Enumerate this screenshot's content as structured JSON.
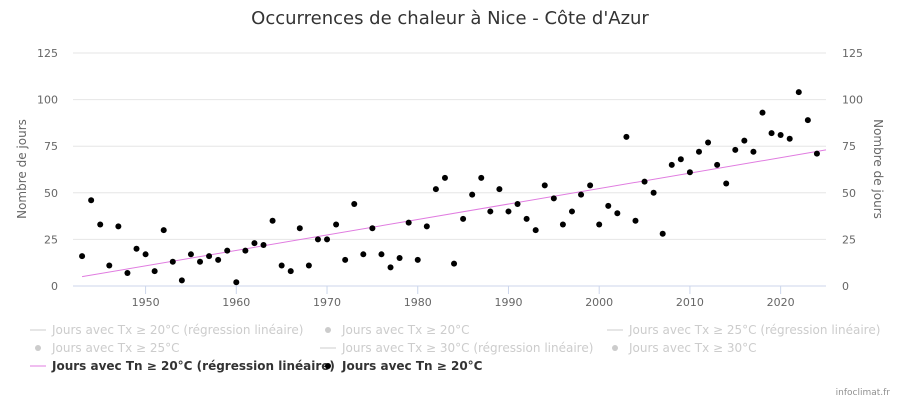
{
  "chart_data": {
    "type": "scatter",
    "title": "Occurrences de chaleur à Nice - Côte d'Azur",
    "ylabel_left": "Nombre de jours",
    "ylabel_right": "Nombre de jours",
    "xlim": [
      1942,
      2025
    ],
    "ylim": [
      0,
      125
    ],
    "x_ticks": [
      1950,
      1960,
      1970,
      1980,
      1990,
      2000,
      2010,
      2020
    ],
    "y_ticks": [
      0,
      25,
      50,
      75,
      100,
      125
    ],
    "grid": true,
    "legend_position": "bottom",
    "legend": [
      {
        "label": "Jours avec Tx ≥ 20°C (régression linéaire)",
        "kind": "line",
        "active": false
      },
      {
        "label": "Jours avec Tx ≥ 20°C",
        "kind": "marker",
        "active": false
      },
      {
        "label": "Jours avec Tx ≥ 25°C (régression linéaire)",
        "kind": "line",
        "active": false
      },
      {
        "label": "Jours avec Tx ≥ 25°C",
        "kind": "marker",
        "active": false
      },
      {
        "label": "Jours avec Tx ≥ 30°C (régression linéaire)",
        "kind": "line",
        "active": false
      },
      {
        "label": "Jours avec Tx ≥ 30°C",
        "kind": "marker",
        "active": false
      },
      {
        "label": "Jours avec Tn ≥ 20°C (régression linéaire)",
        "kind": "line",
        "active": true
      },
      {
        "label": "Jours avec Tn ≥ 20°C",
        "kind": "marker",
        "active": true
      }
    ],
    "series": [
      {
        "name": "Jours avec Tn ≥ 20°C",
        "kind": "scatter",
        "color": "#000000",
        "points": [
          [
            1943,
            16
          ],
          [
            1944,
            46
          ],
          [
            1945,
            33
          ],
          [
            1946,
            11
          ],
          [
            1947,
            32
          ],
          [
            1948,
            7
          ],
          [
            1949,
            20
          ],
          [
            1950,
            17
          ],
          [
            1951,
            8
          ],
          [
            1952,
            30
          ],
          [
            1953,
            13
          ],
          [
            1954,
            3
          ],
          [
            1955,
            17
          ],
          [
            1956,
            13
          ],
          [
            1957,
            16
          ],
          [
            1958,
            14
          ],
          [
            1959,
            19
          ],
          [
            1960,
            2
          ],
          [
            1961,
            19
          ],
          [
            1962,
            23
          ],
          [
            1963,
            22
          ],
          [
            1964,
            35
          ],
          [
            1965,
            11
          ],
          [
            1966,
            8
          ],
          [
            1967,
            31
          ],
          [
            1968,
            11
          ],
          [
            1969,
            25
          ],
          [
            1970,
            25
          ],
          [
            1971,
            33
          ],
          [
            1972,
            14
          ],
          [
            1973,
            44
          ],
          [
            1974,
            17
          ],
          [
            1975,
            31
          ],
          [
            1976,
            17
          ],
          [
            1977,
            10
          ],
          [
            1978,
            15
          ],
          [
            1979,
            34
          ],
          [
            1980,
            14
          ],
          [
            1981,
            32
          ],
          [
            1982,
            52
          ],
          [
            1983,
            58
          ],
          [
            1984,
            12
          ],
          [
            1985,
            36
          ],
          [
            1986,
            49
          ],
          [
            1987,
            58
          ],
          [
            1988,
            40
          ],
          [
            1989,
            52
          ],
          [
            1990,
            40
          ],
          [
            1991,
            44
          ],
          [
            1992,
            36
          ],
          [
            1993,
            30
          ],
          [
            1994,
            54
          ],
          [
            1995,
            47
          ],
          [
            1996,
            33
          ],
          [
            1997,
            40
          ],
          [
            1998,
            49
          ],
          [
            1999,
            54
          ],
          [
            2000,
            33
          ],
          [
            2001,
            43
          ],
          [
            2002,
            39
          ],
          [
            2003,
            80
          ],
          [
            2004,
            35
          ],
          [
            2005,
            56
          ],
          [
            2006,
            50
          ],
          [
            2007,
            28
          ],
          [
            2008,
            65
          ],
          [
            2009,
            68
          ],
          [
            2010,
            61
          ],
          [
            2011,
            72
          ],
          [
            2012,
            77
          ],
          [
            2013,
            65
          ],
          [
            2014,
            55
          ],
          [
            2015,
            73
          ],
          [
            2016,
            78
          ],
          [
            2017,
            72
          ],
          [
            2018,
            93
          ],
          [
            2019,
            82
          ],
          [
            2020,
            81
          ],
          [
            2021,
            79
          ],
          [
            2022,
            104
          ],
          [
            2023,
            89
          ],
          [
            2024,
            71
          ]
        ]
      },
      {
        "name": "Jours avec Tn ≥ 20°C (régression linéaire)",
        "kind": "line",
        "color": "#e07ce0",
        "points": [
          [
            1943,
            5
          ],
          [
            2025,
            73
          ]
        ]
      }
    ]
  },
  "credits": "infoclimat.fr"
}
